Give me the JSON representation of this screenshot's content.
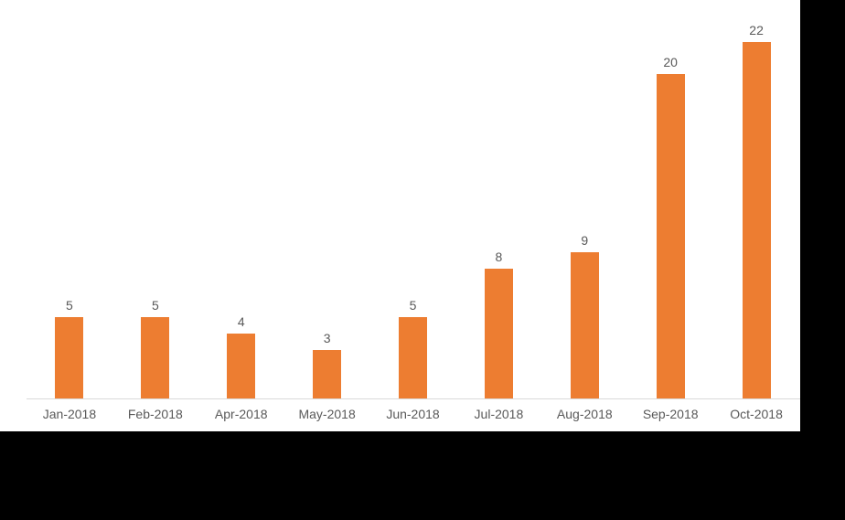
{
  "chart_data": {
    "type": "bar",
    "title": "",
    "xlabel": "",
    "ylabel": "",
    "categories": [
      "Jan-2018",
      "Feb-2018",
      "Apr-2018",
      "May-2018",
      "Jun-2018",
      "Jul-2018",
      "Aug-2018",
      "Sep-2018",
      "Oct-2018"
    ],
    "values": [
      5,
      5,
      4,
      3,
      5,
      8,
      9,
      20,
      22
    ],
    "data_labels": [
      "5",
      "5",
      "4",
      "3",
      "5",
      "8",
      "9",
      "20",
      "22"
    ],
    "ylim": [
      0,
      22
    ],
    "y_axis_visible": false,
    "gridlines": false,
    "legend": "none",
    "colors": {
      "bar": "#ED7D31",
      "label_text": "#595959",
      "axis_line": "#D9D9D9",
      "panel_background": "#FFFFFF",
      "letterbox": "#000000"
    }
  }
}
